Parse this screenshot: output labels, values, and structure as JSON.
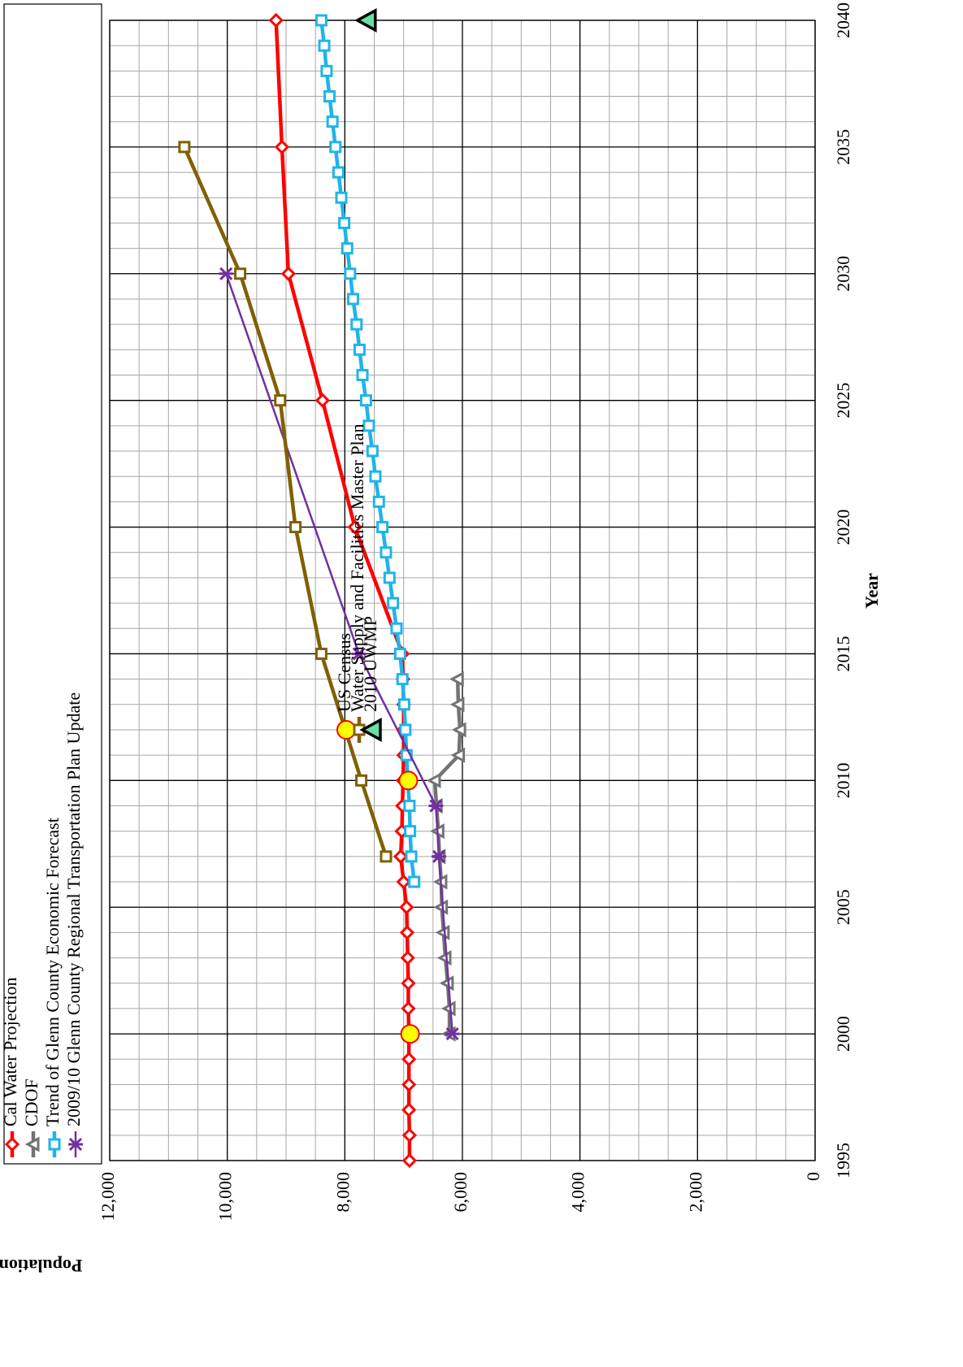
{
  "chart_data": {
    "type": "line",
    "xlabel": "Year",
    "ylabel": "Population",
    "xlim": [
      1995,
      2040
    ],
    "xticks": [
      1995,
      2000,
      2005,
      2010,
      2015,
      2020,
      2025,
      2030,
      2035,
      2040
    ],
    "ylim": [
      0,
      12000
    ],
    "yticks": [
      0,
      {
        "value": 2000,
        "label": "2,000"
      },
      {
        "value": 4000,
        "label": "4,000"
      },
      {
        "value": 6000,
        "label": "6,000"
      },
      {
        "value": 8000,
        "label": "8,000"
      },
      {
        "value": 10000,
        "label": "10,000"
      },
      {
        "value": 12000,
        "label": "12,000"
      }
    ],
    "grid": true,
    "minor_grid": {
      "x": 1,
      "y": 500
    },
    "legend": "top",
    "series": [
      {
        "name": "Cal Water Projection",
        "color": "#ff0000",
        "marker": "diamond",
        "line": true,
        "x": [
          1995,
          1996,
          1997,
          1998,
          1999,
          2000,
          2001,
          2002,
          2003,
          2004,
          2005,
          2006,
          2007,
          2008,
          2009,
          2010,
          2011,
          2012,
          2013,
          2014,
          2015,
          2020,
          2025,
          2030,
          2035,
          2040
        ],
        "values": [
          6900,
          6900,
          6910,
          6910,
          6910,
          6910,
          6920,
          6920,
          6930,
          6940,
          6950,
          7000,
          7050,
          7030,
          7020,
          7010,
          7000,
          7000,
          7000,
          7010,
          7020,
          7830,
          8380,
          8960,
          9070,
          9170
        ]
      },
      {
        "name": "CDOF",
        "color": "#737373",
        "marker": "triangle",
        "line": true,
        "x": [
          2000,
          2001,
          2002,
          2003,
          2004,
          2005,
          2006,
          2007,
          2008,
          2009,
          2010,
          2011,
          2012,
          2013,
          2014
        ],
        "values": [
          6220,
          6220,
          6250,
          6290,
          6320,
          6350,
          6360,
          6390,
          6410,
          6440,
          6470,
          6060,
          6040,
          6070,
          6080
        ]
      },
      {
        "name": "Trend of Glenn County Economic Forecast",
        "color": "#1eb4ea",
        "marker": "square",
        "line": true,
        "x": [
          2006,
          2007,
          2008,
          2009,
          2010,
          2011,
          2012,
          2013,
          2014,
          2015,
          2016,
          2017,
          2018,
          2019,
          2020,
          2021,
          2022,
          2023,
          2024,
          2025,
          2026,
          2027,
          2028,
          2029,
          2030,
          2031,
          2032,
          2033,
          2034,
          2035,
          2036,
          2037,
          2038,
          2039,
          2040
        ],
        "values": [
          6820,
          6870,
          6890,
          6900,
          6930,
          6950,
          6970,
          6990,
          7020,
          7060,
          7120,
          7180,
          7240,
          7300,
          7360,
          7420,
          7480,
          7530,
          7590,
          7640,
          7700,
          7750,
          7800,
          7860,
          7910,
          7960,
          8010,
          8060,
          8110,
          8160,
          8210,
          8260,
          8310,
          8350,
          8400
        ]
      },
      {
        "name": "2009/10 Glenn County Regional Transportation Plan Update",
        "color": "#7030a0",
        "marker": "star",
        "line": true,
        "x": [
          2000,
          2007,
          2009,
          2015,
          2030
        ],
        "values": [
          6170,
          6400,
          6450,
          7760,
          10020
        ]
      },
      {
        "name": "US Census",
        "color": "#ffff00",
        "marker": "circle",
        "line": false,
        "x": [
          2000,
          2010
        ],
        "values": [
          6890,
          6920
        ]
      },
      {
        "name": "Water Supply and Facilities Master Plan",
        "color": "#806000",
        "marker": "square",
        "line": true,
        "x": [
          2007,
          2010,
          2015,
          2020,
          2025,
          2030,
          2035
        ],
        "values": [
          7300,
          7720,
          8400,
          8840,
          9100,
          9780,
          10730
        ]
      },
      {
        "name": "2010 UWMP",
        "color": "#66e0a3",
        "marker": "triangle-big",
        "line": false,
        "x": [
          2040
        ],
        "values": [
          7620
        ]
      }
    ]
  }
}
